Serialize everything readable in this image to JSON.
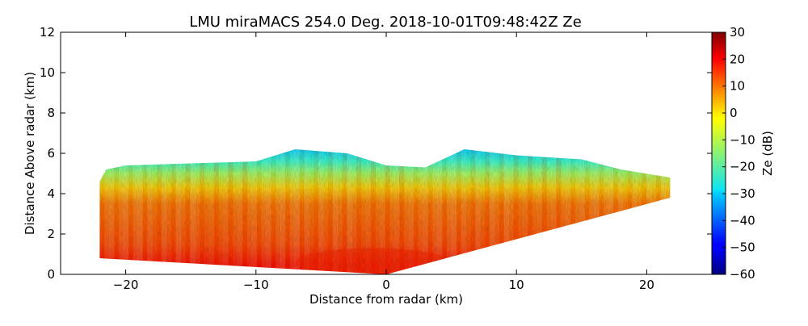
{
  "chart_data": {
    "type": "heatmap",
    "title": "LMU miraMACS 254.0 Deg. 2018-10-01T09:48:42Z  Ze",
    "xlabel": "Distance from radar (km)",
    "ylabel": "Distance Above radar  (km)",
    "xlim": [
      -25,
      25
    ],
    "ylim": [
      0,
      12
    ],
    "x_ticks": [
      -20,
      -10,
      0,
      10,
      20
    ],
    "x_tick_labels": [
      "−20",
      "−10",
      "0",
      "10",
      "20"
    ],
    "y_ticks": [
      0,
      2,
      4,
      6,
      8,
      10,
      12
    ],
    "y_tick_labels": [
      "0",
      "2",
      "4",
      "6",
      "8",
      "10",
      "12"
    ],
    "colorbar": {
      "label": "Ze (dB)",
      "colormap": "jet",
      "range": [
        -60,
        30
      ],
      "ticks": [
        -60,
        -50,
        -40,
        -30,
        -20,
        -10,
        0,
        10,
        20,
        30
      ],
      "tick_labels": [
        "−60",
        "−50",
        "−40",
        "−30",
        "−20",
        "−10",
        "0",
        "10",
        "20",
        "30"
      ]
    },
    "scan_region": {
      "description_points_km": [
        [
          -22,
          0.8
        ],
        [
          -22,
          4.6
        ],
        [
          -21.5,
          5.2
        ],
        [
          -20,
          5.4
        ],
        [
          -15,
          5.5
        ],
        [
          -10,
          5.6
        ],
        [
          -7,
          6.2
        ],
        [
          -3,
          6.0
        ],
        [
          0,
          5.4
        ],
        [
          3,
          5.3
        ],
        [
          6,
          6.2
        ],
        [
          10,
          5.9
        ],
        [
          15,
          5.7
        ],
        [
          18,
          5.2
        ],
        [
          21.8,
          4.8
        ],
        [
          21.8,
          3.8
        ],
        [
          0,
          0
        ],
        [
          -22,
          0.8
        ]
      ],
      "ze_by_height_km": [
        {
          "z": 0.5,
          "ze": 17
        },
        {
          "z": 1.5,
          "ze": 12
        },
        {
          "z": 2.5,
          "ze": 10
        },
        {
          "z": 3.5,
          "ze": 8
        },
        {
          "z": 4.3,
          "ze": 0
        },
        {
          "z": 5.0,
          "ze": -12
        },
        {
          "z": 5.6,
          "ze": -22
        },
        {
          "z": 6.2,
          "ze": -30
        }
      ]
    }
  }
}
